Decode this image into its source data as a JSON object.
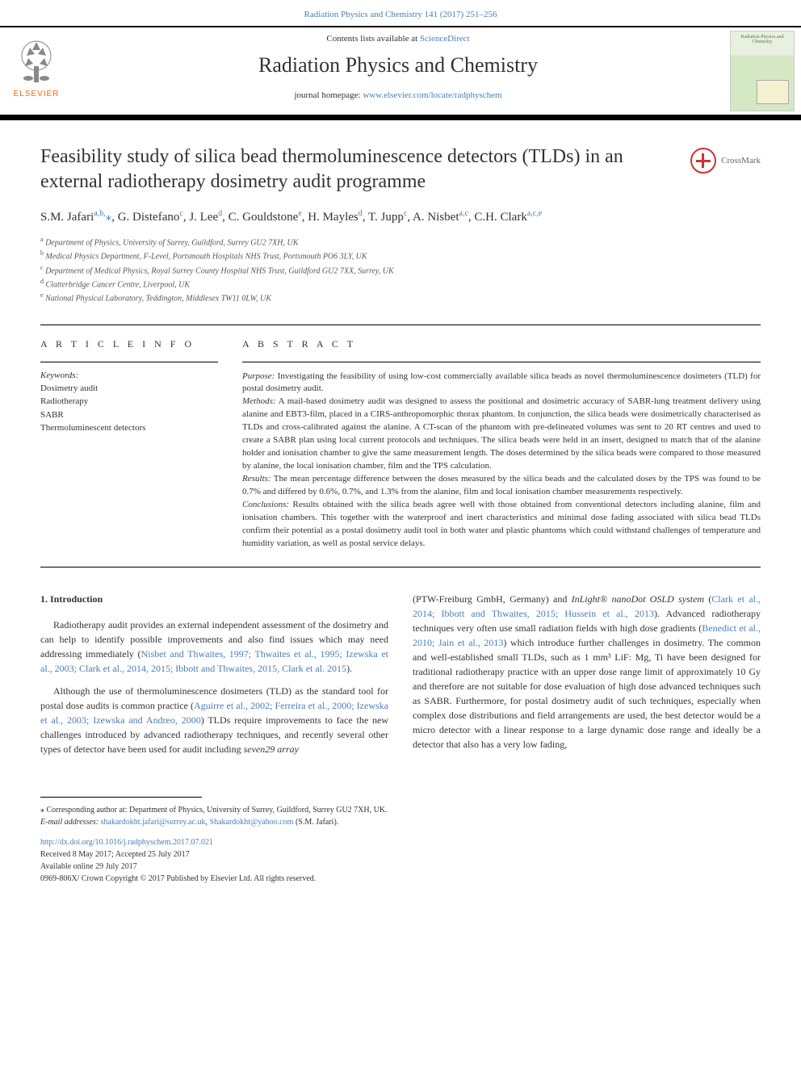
{
  "top_link_journal": "Radiation Physics and Chemistry 141 (2017) 251–256",
  "header": {
    "contents_prefix": "Contents lists available at ",
    "contents_link": "ScienceDirect",
    "journal_name": "Radiation Physics and Chemistry",
    "homepage_prefix": "journal homepage: ",
    "homepage_url": "www.elsevier.com/locate/radphyschem",
    "elsevier_label": "ELSEVIER",
    "cover_title": "Radiation Physics and Chemistry"
  },
  "crossmark_label": "CrossMark",
  "title": "Feasibility study of silica bead thermoluminescence detectors (TLDs) in an external radiotherapy dosimetry audit programme",
  "authors_html": "S.M. Jafari<sup>a,b,</sup><span class='ast'>⁎</span>, G. Distefano<sup>c</sup>, J. Lee<sup>d</sup>, C. Gouldstone<sup>e</sup>, H. Mayles<sup>d</sup>, T. Jupp<sup>c</sup>, A. Nisbet<sup>a,c</sup>, C.H. Clark<sup>a,c,e</sup>",
  "affiliations": [
    {
      "sup": "a",
      "text": "Department of Physics, University of Surrey, Guildford, Surrey GU2 7XH, UK"
    },
    {
      "sup": "b",
      "text": "Medical Physics Department, F-Level, Portsmouth Hospitals NHS Trust, Portsmouth PO6 3LY, UK"
    },
    {
      "sup": "c",
      "text": "Department of Medical Physics, Royal Surrey County Hospital NHS Trust, Guildford GU2 7XX, Surrey, UK"
    },
    {
      "sup": "d",
      "text": "Clatterbridge Cancer Centre, Liverpool, UK"
    },
    {
      "sup": "e",
      "text": "National Physical Laboratory, Teddington, Middlesex TW11 0LW, UK"
    }
  ],
  "article_info_heading": "A R T I C L E  I N F O",
  "abstract_heading": "A B S T R A C T",
  "keywords_label": "Keywords:",
  "keywords": [
    "Dosimetry audit",
    "Radiotherapy",
    "SABR",
    "Thermoluminescent detectors"
  ],
  "abstract_segments": [
    {
      "label": "Purpose:",
      "text": " Investigating the feasibility of using low-cost commercially available silica beads as novel thermoluminescence dosimeters (TLD) for postal dosimetry audit."
    },
    {
      "label": "Methods:",
      "text": " A mail-based dosimetry audit was designed to assess the positional and dosimetric accuracy of SABR-lung treatment delivery using alanine and EBT3-film, placed in a CIRS-anthropomorphic thorax phantom. In conjunction, the silica beads were dosimetrically characterised as TLDs and cross-calibrated against the alanine. A CT-scan of the phantom with pre-delineated volumes was sent to 20 RT centres and used to create a SABR plan using local current protocols and techniques. The silica beads were held in an insert, designed to match that of the alanine holder and ionisation chamber to give the same measurement length. The doses determined by the silica beads were compared to those measured by alanine, the local ionisation chamber, film and the TPS calculation."
    },
    {
      "label": "Results:",
      "text": " The mean percentage difference between the doses measured by the silica beads and the calculated doses by the TPS was found to be 0.7% and differed by 0.6%, 0.7%, and 1.3% from the alanine, film and local ionisation chamber measurements respectively."
    },
    {
      "label": "Conclusions:",
      "text": " Results obtained with the silica beads agree well with those obtained from conventional detectors including alanine, film and ionisation chambers. This together with the waterproof and inert characteristics and minimal dose fading associated with silica bead TLDs confirm their potential as a postal dosimetry audit tool in both water and plastic phantoms which could withstand challenges of temperature and humidity variation, as well as postal service delays."
    }
  ],
  "intro_heading": "1. Introduction",
  "intro_left_p1_pre": "Radiotherapy audit provides an external independent assessment of the dosimetry and can help to identify possible improvements and also find issues which may need addressing immediately (",
  "intro_left_p1_link": "Nisbet and Thwaites, 1997; Thwaites et al., 1995; Izewska et al., 2003; Clark et al., 2014, 2015; Ibbott and Thwaites, 2015, Clark et al. 2015",
  "intro_left_p1_post": ").",
  "intro_left_p2_pre": "Although the use of thermoluminescence dosimeters (TLD) as the standard tool for postal dose audits is common practice (",
  "intro_left_p2_link": "Aguirre et al., 2002; Ferreira et al., 2000; Izewska et al., 2003; Izewska and Andreo, 2000",
  "intro_left_p2_post": ") TLDs require improvements to face the new challenges introduced by advanced radiotherapy techniques, and recently several other types of detector have been used for audit including ",
  "intro_left_p2_product": "seven29 array",
  "intro_right_p1_pre": "(PTW-Freiburg GmbH, Germany) and ",
  "intro_right_p1_product": "InLight® nanoDot OSLD system",
  "intro_right_p1_post_a": " (",
  "intro_right_p1_link1": "Clark et al., 2014; Ibbott and Thwaites, 2015; Hussein et al., 2013",
  "intro_right_p1_mid": "). Advanced radiotherapy techniques very often use small radiation fields with high dose gradients (",
  "intro_right_p1_link2": "Benedict et al., 2010; Jain et al., 2013",
  "intro_right_p1_tail": ") which introduce further challenges in dosimetry. The common and well-established small TLDs, such as 1 mm³ LiF: Mg, Ti have been designed for traditional radiotherapy practice with an upper dose range limit of approximately 10 Gy and therefore are not suitable for dose evaluation of high dose advanced techniques such as SABR. Furthermore, for postal dosimetry audit of such techniques, especially when complex dose distributions and field arrangements are used, the best detector would be a micro detector with a linear response to a large dynamic dose range and ideally be a detector that also has a very low fading,",
  "footnote": {
    "corr_label": "⁎",
    "corr_text": " Corresponding author at: Department of Physics, University of Surrey, Guildford, Surrey GU2 7XH, UK.",
    "email_label": "E-mail addresses: ",
    "email1": "shakardokht.jafari@surrey.ac.uk",
    "email_sep": ", ",
    "email2": "Shakardokht@yahoo.com",
    "email_post": " (S.M. Jafari)."
  },
  "footer": {
    "doi": "http://dx.doi.org/10.1016/j.radphyschem.2017.07.021",
    "received": "Received 8 May 2017; Accepted 25 July 2017",
    "available": "Available online 29 July 2017",
    "copyright": "0969-806X/ Crown Copyright © 2017 Published by Elsevier Ltd. All rights reserved."
  },
  "colors": {
    "link": "#4a7db8",
    "text": "#333333",
    "elsevier_orange": "#ff6600",
    "crossmark_red": "#cc3333"
  }
}
